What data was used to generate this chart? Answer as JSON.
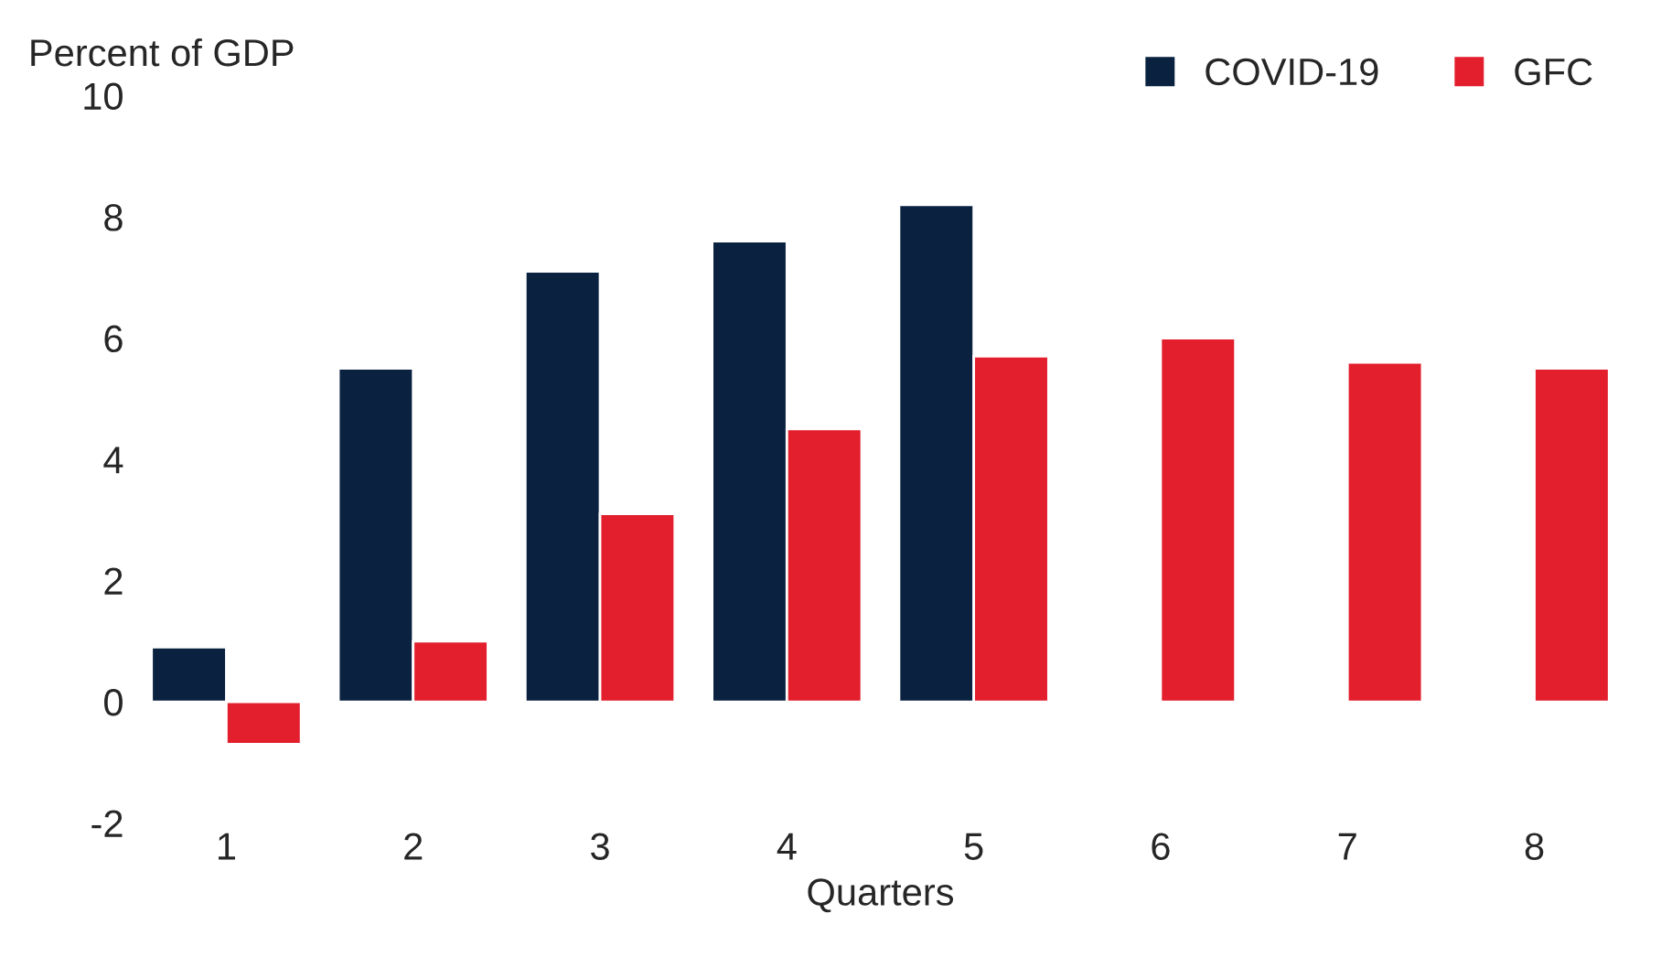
{
  "chart_data": {
    "type": "bar",
    "ylabel": "Percent of GDP",
    "xlabel": "Quarters",
    "categories": [
      "1",
      "2",
      "3",
      "4",
      "5",
      "6",
      "7",
      "8"
    ],
    "series": [
      {
        "name": "COVID-19",
        "color": "#0a2240",
        "values": [
          0.9,
          5.5,
          7.1,
          7.6,
          8.2,
          null,
          null,
          null
        ]
      },
      {
        "name": "GFC",
        "color": "#e31e2d",
        "values": [
          -0.7,
          1.0,
          3.1,
          4.5,
          5.7,
          6.0,
          5.6,
          5.5
        ]
      }
    ],
    "ylim": [
      -2,
      10
    ],
    "yticks": [
      {
        "value": -2,
        "label": "-2"
      },
      0,
      2,
      4,
      6,
      8,
      10
    ],
    "grid": false,
    "legend": "top right"
  }
}
